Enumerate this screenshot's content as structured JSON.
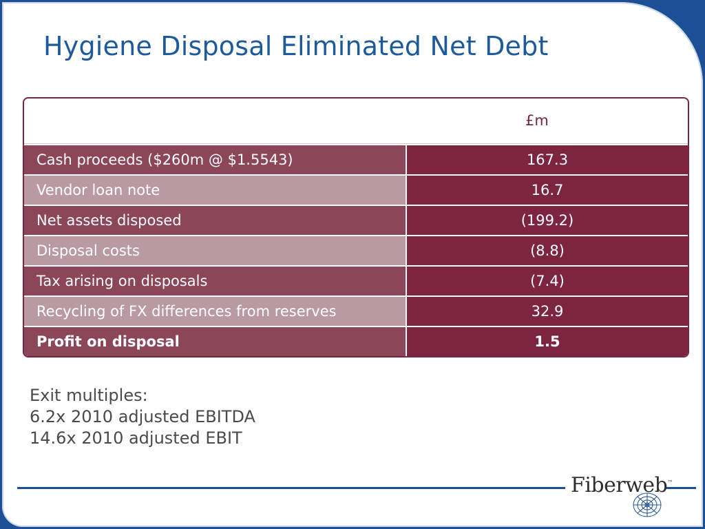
{
  "slide": {
    "title": "Hygiene Disposal Eliminated Net Debt"
  },
  "table": {
    "unit_header": "£m",
    "rows": [
      {
        "label": "Cash proceeds ($260m @ $1.5543)",
        "value": "167.3"
      },
      {
        "label": "Vendor loan note",
        "value": "16.7"
      },
      {
        "label": "Net assets disposed",
        "value": "(199.2)"
      },
      {
        "label": "Disposal costs",
        "value": "(8.8)"
      },
      {
        "label": "Tax arising on disposals",
        "value": "(7.4)"
      },
      {
        "label": "Recycling of FX differences from reserves",
        "value": "32.9"
      },
      {
        "label": "Profit on disposal",
        "value": "1.5"
      }
    ]
  },
  "notes": {
    "line1": "Exit multiples:",
    "line2": "6.2x 2010 adjusted EBITDA",
    "line3": "14.6x 2010 adjusted EBIT"
  },
  "logo": {
    "text": "Fiberweb",
    "tm": "™",
    "icon": "web-icon"
  },
  "colors": {
    "frame": "#1c4f94",
    "title": "#1d5a9b",
    "table_dark": "#7d2540",
    "table_mid": "#8b4657",
    "table_light": "#b99aa2"
  }
}
